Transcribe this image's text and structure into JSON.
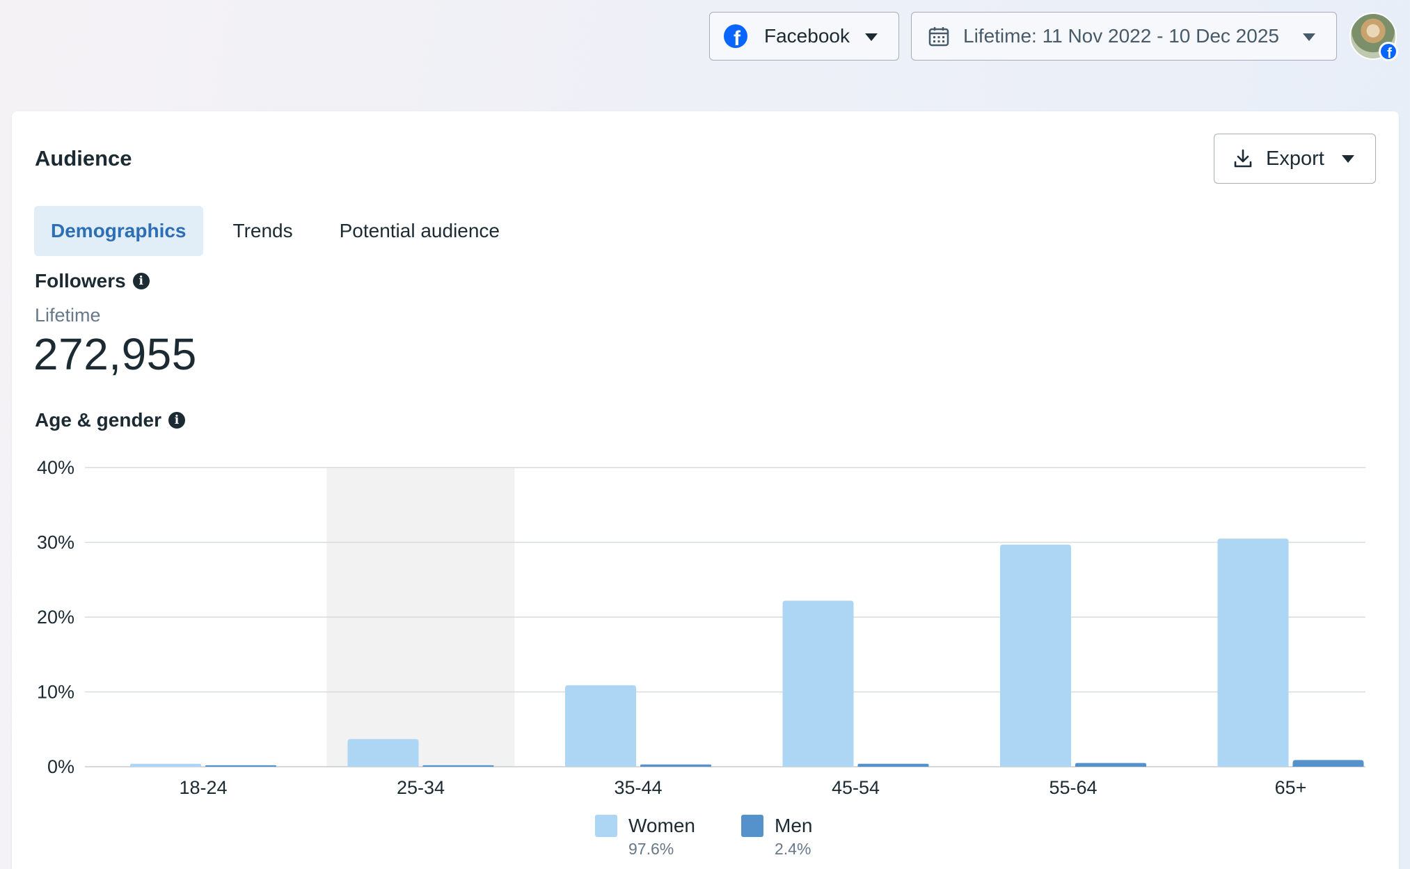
{
  "topbar": {
    "platform_label": "Facebook",
    "platform_icon": "facebook-icon",
    "date_range_label": "Lifetime: 11 Nov 2022 - 10 Dec 2025",
    "date_icon": "calendar-icon"
  },
  "card": {
    "title": "Audience",
    "export_label": "Export",
    "tabs": [
      {
        "label": "Demographics",
        "active": true
      },
      {
        "label": "Trends",
        "active": false
      },
      {
        "label": "Potential audience",
        "active": false
      }
    ],
    "followers": {
      "label": "Followers",
      "period": "Lifetime",
      "value": "272,955"
    },
    "age_gender_label": "Age & gender"
  },
  "colors": {
    "women": "#acd6f4",
    "men": "#5592cb",
    "accent": "#2c6fb5",
    "hover_band": "#f2f2f2",
    "gridline": "#d8dadd"
  },
  "chart_data": {
    "type": "bar",
    "categories": [
      "18-24",
      "25-34",
      "35-44",
      "45-54",
      "55-64",
      "65+"
    ],
    "series": [
      {
        "name": "Women",
        "values": [
          0.4,
          3.7,
          10.9,
          22.2,
          29.7,
          30.5
        ],
        "share": "97.6%"
      },
      {
        "name": "Men",
        "values": [
          0.2,
          0.2,
          0.3,
          0.4,
          0.5,
          0.9
        ],
        "share": "2.4%"
      }
    ],
    "ylim": [
      0,
      40
    ],
    "yticks": [
      "0%",
      "10%",
      "20%",
      "30%",
      "40%"
    ],
    "ytick_values": [
      0,
      10,
      20,
      30,
      40
    ],
    "grid": true,
    "highlighted_category": "25-34",
    "legend_position": "bottom-center"
  }
}
